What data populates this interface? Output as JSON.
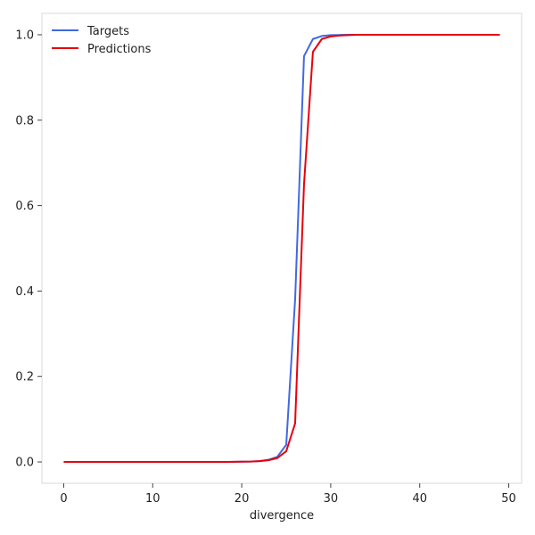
{
  "chart_data": {
    "type": "line",
    "title": "",
    "xlabel": "divergence",
    "ylabel": "",
    "xlim": [
      -2.45,
      51.45
    ],
    "ylim": [
      -0.05,
      1.05
    ],
    "xticks": [
      0,
      10,
      20,
      30,
      40,
      50
    ],
    "yticks": [
      0.0,
      0.2,
      0.4,
      0.6,
      0.8,
      1.0
    ],
    "xtick_labels": [
      "0",
      "10",
      "20",
      "30",
      "40",
      "50"
    ],
    "ytick_labels": [
      "0.0",
      "0.2",
      "0.4",
      "0.6",
      "0.8",
      "1.0"
    ],
    "grid": false,
    "legend": "top-left",
    "series": [
      {
        "name": "Targets",
        "color": "#4169e1",
        "x": [
          0,
          1,
          2,
          3,
          4,
          5,
          6,
          7,
          8,
          9,
          10,
          11,
          12,
          13,
          14,
          15,
          16,
          17,
          18,
          19,
          20,
          21,
          22,
          23,
          24,
          25,
          26,
          27,
          28,
          29,
          30,
          31,
          32,
          33,
          34,
          35,
          36,
          37,
          38,
          39,
          40,
          41,
          42,
          43,
          44,
          45,
          46,
          47,
          48,
          49
        ],
        "y": [
          0,
          0,
          0,
          0,
          0,
          0,
          0,
          0,
          0,
          0,
          0,
          0,
          0,
          0,
          0,
          0,
          0,
          0,
          0,
          0,
          0.0005,
          0.001,
          0.002,
          0.005,
          0.012,
          0.04,
          0.38,
          0.95,
          0.99,
          0.997,
          0.999,
          0.9995,
          1,
          1,
          1,
          1,
          1,
          1,
          1,
          1,
          1,
          1,
          1,
          1,
          1,
          1,
          1,
          1,
          1,
          1
        ]
      },
      {
        "name": "Predictions",
        "color": "#e8000b",
        "x": [
          0,
          1,
          2,
          3,
          4,
          5,
          6,
          7,
          8,
          9,
          10,
          11,
          12,
          13,
          14,
          15,
          16,
          17,
          18,
          19,
          20,
          21,
          22,
          23,
          24,
          25,
          26,
          27,
          28,
          29,
          30,
          31,
          32,
          33,
          34,
          35,
          36,
          37,
          38,
          39,
          40,
          41,
          42,
          43,
          44,
          45,
          46,
          47,
          48,
          49
        ],
        "y": [
          0,
          0,
          0,
          0,
          0,
          0,
          0,
          0,
          0,
          0,
          0,
          0,
          0,
          0,
          0,
          0,
          0,
          0,
          0,
          0.0003,
          0.0006,
          0.001,
          0.002,
          0.004,
          0.009,
          0.025,
          0.09,
          0.65,
          0.96,
          0.99,
          0.996,
          0.998,
          0.999,
          1,
          1,
          1,
          1,
          1,
          1,
          1,
          1,
          1,
          1,
          1,
          1,
          1,
          1,
          1,
          1,
          1
        ]
      }
    ]
  }
}
